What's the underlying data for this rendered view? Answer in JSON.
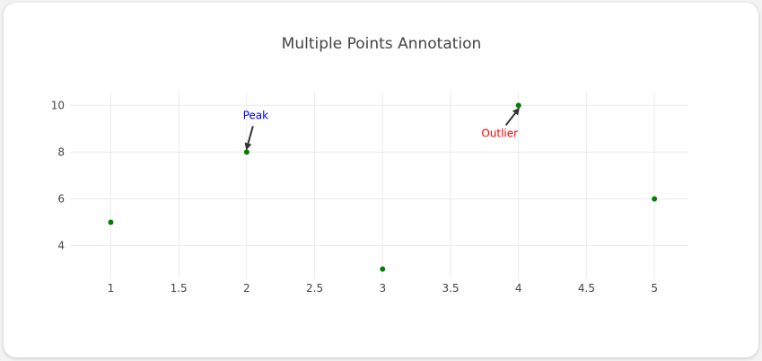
{
  "chart_data": {
    "type": "scatter",
    "title": "Multiple Points Annotation",
    "xlabel": "",
    "ylabel": "",
    "x": [
      1,
      2,
      3,
      4,
      5
    ],
    "y": [
      5,
      8,
      3,
      10,
      6
    ],
    "xlim": [
      0.7,
      5.25
    ],
    "ylim": [
      2.6,
      10.55
    ],
    "x_ticks": [
      1,
      1.5,
      2,
      2.5,
      3,
      3.5,
      4,
      4.5,
      5
    ],
    "x_tick_labels": [
      "1",
      "1.5",
      "2",
      "2.5",
      "3",
      "3.5",
      "4",
      "4.5",
      "5"
    ],
    "y_ticks": [
      4,
      6,
      8,
      10
    ],
    "y_tick_labels": [
      "4",
      "6",
      "8",
      "10"
    ],
    "grid": true,
    "marker_color": "#008000",
    "annotations": [
      {
        "text": "Peak",
        "x": 2,
        "y": 8,
        "color": "#0000ff",
        "side": "above"
      },
      {
        "text": "Outlier",
        "x": 4,
        "y": 10,
        "color": "#ff0000",
        "side": "below"
      }
    ]
  }
}
